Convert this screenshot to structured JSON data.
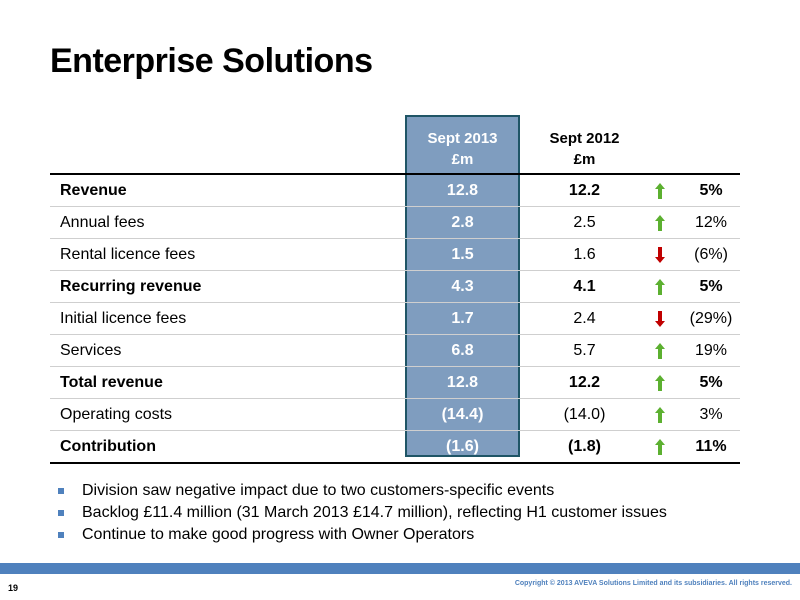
{
  "title": "Enterprise Solutions",
  "columns": {
    "col1": [
      "Sept 2013",
      "£m"
    ],
    "col2": [
      "Sept 2012",
      "£m"
    ]
  },
  "rows": [
    {
      "label": "Revenue",
      "v1": "12.8",
      "v2": "12.2",
      "dir": "up",
      "pct": "5%"
    },
    {
      "label": "Annual fees",
      "v1": "2.8",
      "v2": "2.5",
      "dir": "up",
      "pct": "12%"
    },
    {
      "label": "Rental licence fees",
      "v1": "1.5",
      "v2": "1.6",
      "dir": "down",
      "pct": "(6%)"
    },
    {
      "label": "Recurring revenue",
      "v1": "4.3",
      "v2": "4.1",
      "dir": "up",
      "pct": "5%"
    },
    {
      "label": "Initial licence fees",
      "v1": "1.7",
      "v2": "2.4",
      "dir": "down",
      "pct": "(29%)"
    },
    {
      "label": "Services",
      "v1": "6.8",
      "v2": "5.7",
      "dir": "up",
      "pct": "19%"
    },
    {
      "label": "Total revenue",
      "v1": "12.8",
      "v2": "12.2",
      "dir": "up",
      "pct": "5%"
    },
    {
      "label": "Operating costs",
      "v1": "(14.4)",
      "v2": "(14.0)",
      "dir": "up",
      "pct": "3%"
    },
    {
      "label": "Contribution",
      "v1": "(1.6)",
      "v2": "(1.8)",
      "dir": "up",
      "pct": "11%"
    }
  ],
  "bullets": [
    "Division saw negative impact due to two customers-specific events",
    "Backlog £11.4 million (31 March 2013 £14.7 million), reflecting H1 customer issues",
    "Continue to make good progress with Owner Operators"
  ],
  "footer": {
    "page_number": "19",
    "copyright": "Copyright © 2013 AVEVA Solutions Limited and its subsidiaries. All rights reserved."
  },
  "colors": {
    "highlight": "#7f9dbf",
    "highlight_border": "#1f5566",
    "accent": "#4f81bd",
    "arrow_up": "#5cb030",
    "arrow_down": "#c00000"
  }
}
